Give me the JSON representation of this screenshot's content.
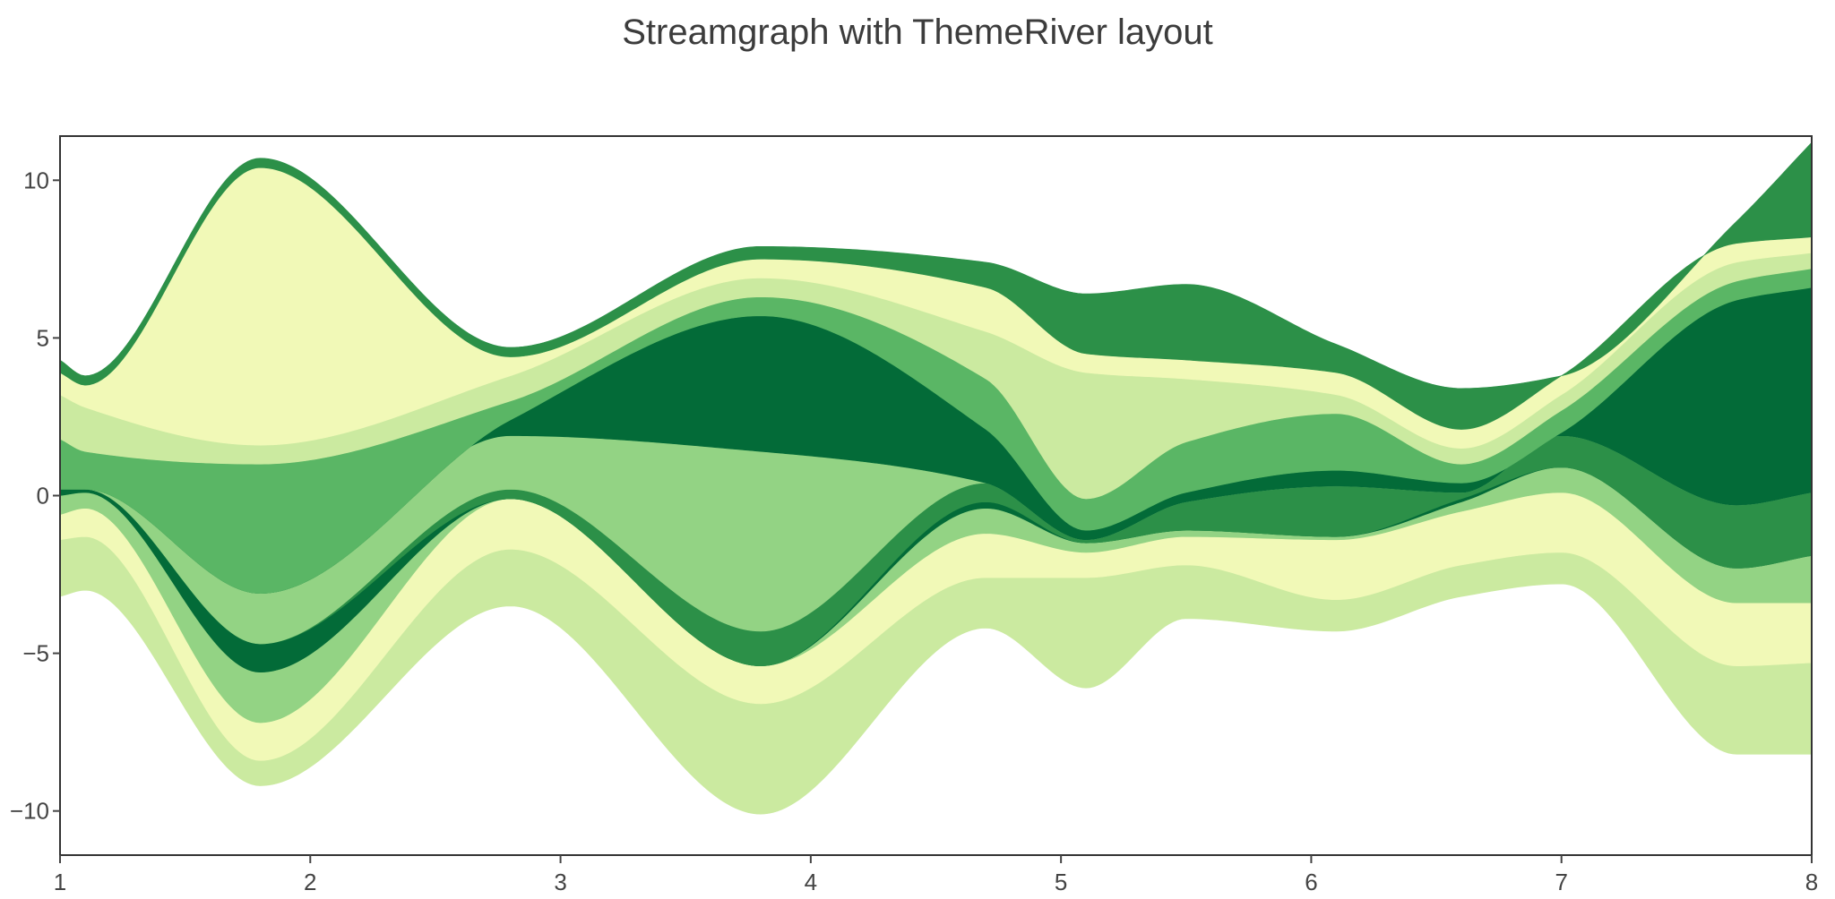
{
  "chart_data": {
    "type": "area",
    "layout": "ThemeRiver",
    "title": "Streamgraph with ThemeRiver layout",
    "xlabel": "",
    "ylabel": "",
    "xlim": [
      1,
      8
    ],
    "ylim": [
      -11.4,
      11.4
    ],
    "x_ticks": [
      1,
      2,
      3,
      4,
      5,
      6,
      7,
      8
    ],
    "y_ticks": [
      10,
      5,
      0,
      -5,
      -10
    ],
    "y_tick_labels": [
      "10",
      "5",
      "0",
      "−5",
      "−10"
    ],
    "grid": false,
    "legend": "none",
    "x": [
      1.0,
      1.1,
      1.8,
      2.8,
      3.8,
      4.7,
      5.1,
      5.5,
      6.1,
      6.6,
      7.0,
      7.7,
      8.0
    ],
    "baseline": [
      -3.2,
      -3.0,
      -9.2,
      -3.5,
      -10.1,
      -4.2,
      -6.1,
      -3.9,
      -4.3,
      -3.2,
      -2.8,
      -8.2,
      -8.2
    ],
    "series": [
      {
        "color": "#cbeaa0",
        "values": [
          1.8,
          1.7,
          0.8,
          1.8,
          3.5,
          1.6,
          3.5,
          1.7,
          1.0,
          1.0,
          1.0,
          2.8,
          2.9
        ]
      },
      {
        "color": "#f1f9b7",
        "values": [
          0.8,
          0.9,
          1.2,
          1.6,
          1.2,
          1.4,
          0.8,
          0.9,
          1.9,
          1.7,
          1.9,
          2.0,
          1.9
        ]
      },
      {
        "color": "#93d384",
        "values": [
          0.6,
          0.5,
          1.6,
          0.0,
          0.0,
          0.8,
          0.3,
          0.2,
          0.1,
          0.3,
          0.8,
          1.1,
          1.5
        ]
      },
      {
        "color": "#036b38",
        "values": [
          0.2,
          0.1,
          0.9,
          0.0,
          0.0,
          0.2,
          0.0,
          0.0,
          0.0,
          0.1,
          0.0,
          0.0,
          0.0
        ]
      },
      {
        "color": "#2c9048",
        "values": [
          0.0,
          0.0,
          0.0,
          0.3,
          1.1,
          0.6,
          0.1,
          0.9,
          1.6,
          0.2,
          1.0,
          2.0,
          2.0
        ]
      },
      {
        "color": "#93d384",
        "values": [
          0.0,
          0.0,
          1.6,
          1.7,
          5.7,
          0.0,
          0.0,
          0.0,
          0.0,
          0.0,
          0.0,
          0.0,
          0.0
        ]
      },
      {
        "color": "#036b38",
        "values": [
          0.0,
          0.0,
          0.0,
          0.5,
          4.3,
          1.7,
          0.3,
          0.3,
          0.5,
          0.3,
          0.1,
          6.5,
          6.5
        ]
      },
      {
        "color": "#5ab665",
        "values": [
          1.6,
          1.2,
          4.1,
          0.6,
          0.6,
          1.6,
          1.0,
          1.6,
          1.8,
          0.6,
          0.7,
          0.6,
          0.6
        ]
      },
      {
        "color": "#cbeaa0",
        "values": [
          1.4,
          1.4,
          0.6,
          0.8,
          0.6,
          1.5,
          4.0,
          2.0,
          0.6,
          0.5,
          0.5,
          0.6,
          0.5
        ]
      },
      {
        "color": "#f1f9b7",
        "values": [
          0.7,
          0.7,
          8.8,
          0.6,
          0.6,
          1.4,
          0.6,
          0.6,
          0.7,
          0.6,
          0.6,
          0.6,
          0.5
        ]
      },
      {
        "color": "#2c9048",
        "values": [
          0.4,
          0.3,
          0.3,
          0.3,
          0.4,
          0.8,
          1.9,
          2.4,
          0.9,
          1.3,
          0.0,
          0.7,
          3.0
        ]
      }
    ]
  }
}
